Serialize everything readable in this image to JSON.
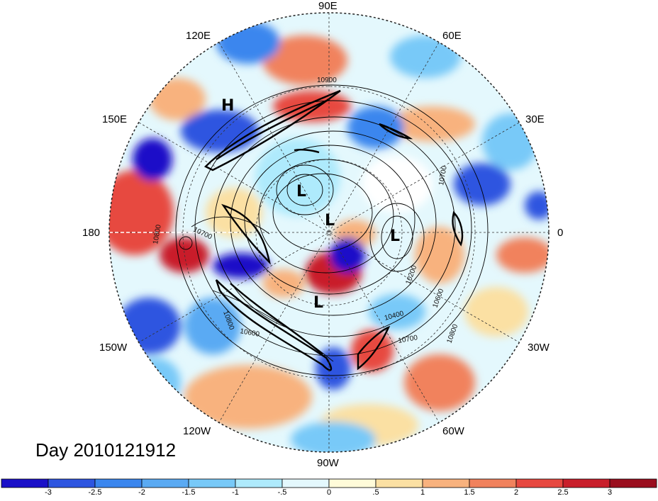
{
  "map": {
    "projection": "north polar stereographic",
    "longitude_labels": [
      "90E",
      "60E",
      "30E",
      "0",
      "30W",
      "60W",
      "90W",
      "120W",
      "150W",
      "180",
      "150E",
      "120E"
    ],
    "pressure_centers": [
      "H",
      "L",
      "L",
      "L",
      "L"
    ],
    "contour_labels": [
      "10900",
      "10800",
      "10700",
      "10700",
      "10800",
      "10600",
      "10400",
      "10200",
      "10700",
      "10800",
      "10600",
      "10700",
      "10400"
    ],
    "day_label": "Day 2010121912"
  },
  "colorbar": {
    "ticks": [
      "-3",
      "-2.5",
      "-2",
      "-1.5",
      "-1",
      "-.5",
      "0",
      ".5",
      "1",
      "1.5",
      "2",
      "2.5",
      "3"
    ],
    "colors": [
      "#1a10c8",
      "#2d55e0",
      "#3a86ee",
      "#5aaaf3",
      "#78c9f8",
      "#aeeafc",
      "#e4f8fd",
      "#fffbd9",
      "#fbe0a3",
      "#f8b27e",
      "#f1825d",
      "#e74840",
      "#c91f2b",
      "#9a0e1e"
    ]
  }
}
